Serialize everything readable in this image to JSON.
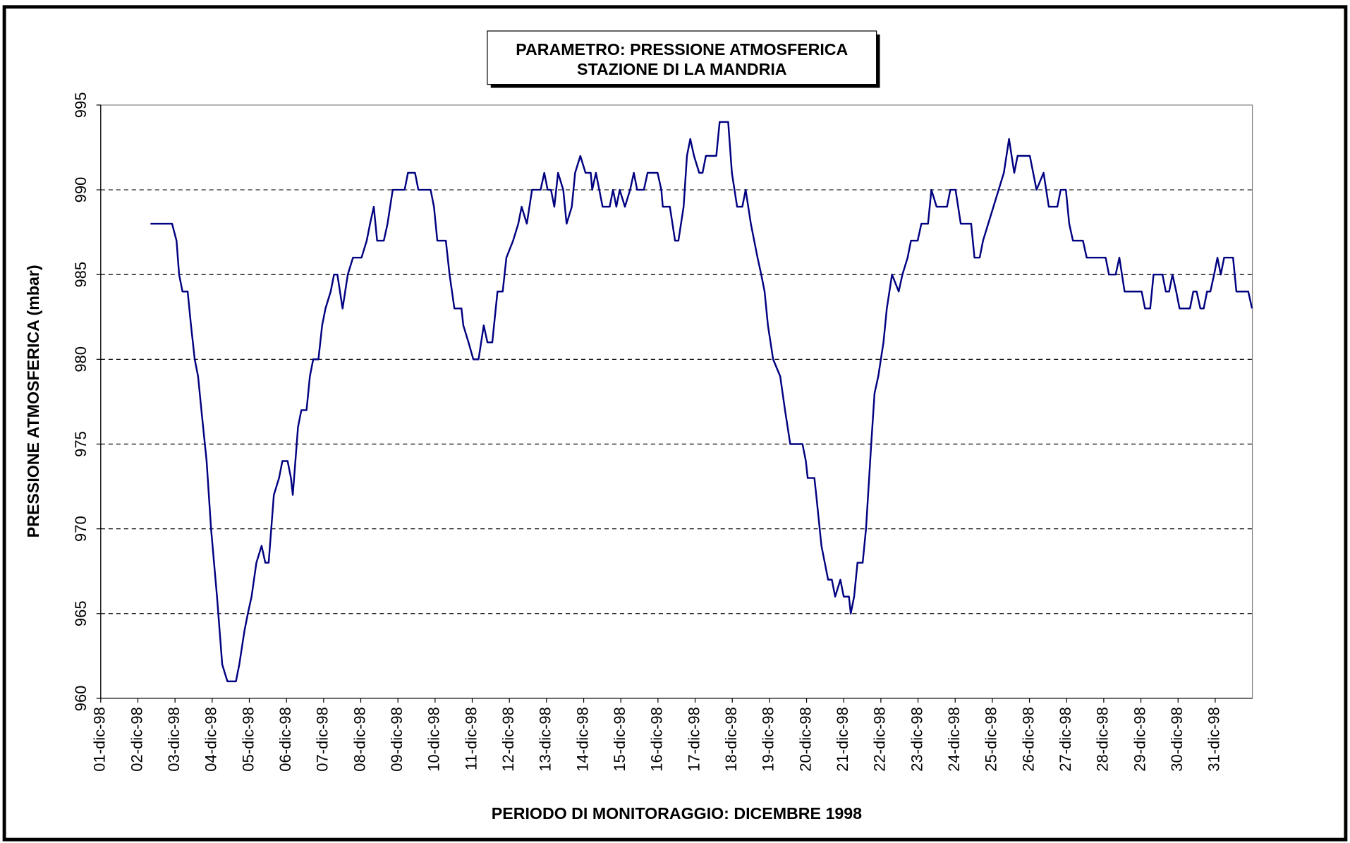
{
  "chart_data": {
    "type": "line",
    "title": [
      "PARAMETRO: PRESSIONE ATMOSFERICA",
      "STAZIONE DI LA MANDRIA"
    ],
    "x_label": "PERIODO DI MONITORAGGIO: DICEMBRE 1998",
    "y_label": "PRESSIONE ATMOSFERICA (mbar)",
    "xlim": [
      1,
      32
    ],
    "xticks": [
      {
        "value": 1,
        "label": "01-dic-98"
      },
      {
        "value": 2,
        "label": "02-dic-98"
      },
      {
        "value": 3,
        "label": "03-dic-98"
      },
      {
        "value": 4,
        "label": "04-dic-98"
      },
      {
        "value": 5,
        "label": "05-dic-98"
      },
      {
        "value": 6,
        "label": "06-dic-98"
      },
      {
        "value": 7,
        "label": "07-dic-98"
      },
      {
        "value": 8,
        "label": "08-dic-98"
      },
      {
        "value": 9,
        "label": "09-dic-98"
      },
      {
        "value": 10,
        "label": "10-dic-98"
      },
      {
        "value": 11,
        "label": "11-dic-98"
      },
      {
        "value": 12,
        "label": "12-dic-98"
      },
      {
        "value": 13,
        "label": "13-dic-98"
      },
      {
        "value": 14,
        "label": "14-dic-98"
      },
      {
        "value": 15,
        "label": "15-dic-98"
      },
      {
        "value": 16,
        "label": "16-dic-98"
      },
      {
        "value": 17,
        "label": "17-dic-98"
      },
      {
        "value": 18,
        "label": "18-dic-98"
      },
      {
        "value": 19,
        "label": "19-dic-98"
      },
      {
        "value": 20,
        "label": "20-dic-98"
      },
      {
        "value": 21,
        "label": "21-dic-98"
      },
      {
        "value": 22,
        "label": "22-dic-98"
      },
      {
        "value": 23,
        "label": "23-dic-98"
      },
      {
        "value": 24,
        "label": "24-dic-98"
      },
      {
        "value": 25,
        "label": "25-dic-98"
      },
      {
        "value": 26,
        "label": "26-dic-98"
      },
      {
        "value": 27,
        "label": "27-dic-98"
      },
      {
        "value": 28,
        "label": "28-dic-98"
      },
      {
        "value": 29,
        "label": "29-dic-98"
      },
      {
        "value": 30,
        "label": "30-dic-98"
      },
      {
        "value": 31,
        "label": "31-dic-98"
      }
    ],
    "ylim": [
      960,
      995
    ],
    "yticks": [
      960,
      965,
      970,
      975,
      980,
      985,
      990,
      995
    ],
    "grid": true,
    "color": "#000080",
    "x": [
      2.34,
      2.92,
      3.04,
      3.11,
      3.2,
      3.34,
      3.43,
      3.53,
      3.62,
      3.71,
      3.85,
      3.97,
      4.13,
      4.27,
      4.41,
      4.64,
      4.73,
      4.87,
      4.96,
      5.06,
      5.19,
      5.33,
      5.43,
      5.52,
      5.66,
      5.8,
      5.89,
      6.03,
      6.12,
      6.17,
      6.31,
      6.4,
      6.54,
      6.63,
      6.72,
      6.86,
      6.96,
      7.05,
      7.19,
      7.28,
      7.37,
      7.51,
      7.65,
      7.79,
      8.02,
      8.16,
      8.25,
      8.35,
      8.44,
      8.62,
      8.72,
      8.86,
      9.18,
      9.27,
      9.46,
      9.55,
      9.88,
      9.97,
      10.06,
      10.29,
      10.39,
      10.52,
      10.71,
      10.76,
      10.9,
      11.03,
      11.17,
      11.31,
      11.41,
      11.54,
      11.68,
      11.82,
      11.92,
      12.1,
      12.24,
      12.33,
      12.47,
      12.61,
      12.84,
      12.94,
      13.03,
      13.12,
      13.21,
      13.31,
      13.45,
      13.54,
      13.68,
      13.77,
      13.91,
      14.05,
      14.19,
      14.23,
      14.33,
      14.42,
      14.51,
      14.7,
      14.79,
      14.88,
      14.97,
      15.11,
      15.25,
      15.35,
      15.44,
      15.62,
      15.72,
      15.99,
      16.09,
      16.13,
      16.32,
      16.46,
      16.55,
      16.69,
      16.78,
      16.87,
      16.97,
      17.11,
      17.2,
      17.29,
      17.57,
      17.66,
      17.89,
      17.99,
      18.13,
      18.27,
      18.36,
      18.5,
      18.59,
      18.68,
      18.78,
      18.87,
      18.96,
      19.1,
      19.29,
      19.42,
      19.56,
      19.89,
      19.98,
      20.03,
      20.21,
      20.26,
      20.4,
      20.49,
      20.58,
      20.68,
      20.77,
      20.91,
      21.0,
      21.14,
      21.19,
      21.28,
      21.37,
      21.51,
      21.6,
      21.74,
      21.83,
      21.93,
      22.07,
      22.16,
      22.3,
      22.48,
      22.58,
      22.72,
      22.81,
      22.99,
      23.09,
      23.27,
      23.36,
      23.5,
      23.78,
      23.87,
      24.01,
      24.15,
      24.43,
      24.52,
      24.66,
      24.75,
      24.89,
      25.03,
      25.17,
      25.31,
      25.45,
      25.59,
      25.68,
      26.01,
      26.1,
      26.19,
      26.38,
      26.52,
      26.75,
      26.84,
      26.98,
      27.07,
      27.17,
      27.44,
      27.54,
      28.05,
      28.14,
      28.32,
      28.42,
      28.56,
      29.02,
      29.11,
      29.25,
      29.34,
      29.58,
      29.67,
      29.76,
      29.85,
      29.95,
      30.04,
      30.32,
      30.41,
      30.5,
      30.6,
      30.69,
      30.78,
      30.87,
      30.97,
      31.06,
      31.15,
      31.24,
      31.48,
      31.57,
      31.89,
      31.99
    ],
    "values": [
      988,
      988,
      987,
      985,
      984,
      984,
      982,
      980,
      979,
      977,
      974,
      970,
      966,
      962,
      961,
      961,
      962,
      964,
      965,
      966,
      968,
      969,
      968,
      968,
      972,
      973,
      974,
      974,
      973,
      972,
      976,
      977,
      977,
      979,
      980,
      980,
      982,
      983,
      984,
      985,
      985,
      983,
      985,
      986,
      986,
      987,
      988,
      989,
      987,
      987,
      988,
      990,
      990,
      991,
      991,
      990,
      990,
      989,
      987,
      987,
      985,
      983,
      983,
      982,
      981,
      980,
      980,
      982,
      981,
      981,
      984,
      984,
      986,
      987,
      988,
      989,
      988,
      990,
      990,
      991,
      990,
      990,
      989,
      991,
      990,
      988,
      989,
      991,
      992,
      991,
      991,
      990,
      991,
      990,
      989,
      989,
      990,
      989,
      990,
      989,
      990,
      991,
      990,
      990,
      991,
      991,
      990,
      989,
      989,
      987,
      987,
      989,
      992,
      993,
      992,
      991,
      991,
      992,
      992,
      994,
      994,
      991,
      989,
      989,
      990,
      988,
      987,
      986,
      985,
      984,
      982,
      980,
      979,
      977,
      975,
      975,
      974,
      973,
      973,
      972,
      969,
      968,
      967,
      967,
      966,
      967,
      966,
      966,
      965,
      966,
      968,
      968,
      970,
      975,
      978,
      979,
      981,
      983,
      985,
      984,
      985,
      986,
      987,
      987,
      988,
      988,
      990,
      989,
      989,
      990,
      990,
      988,
      988,
      986,
      986,
      987,
      988,
      989,
      990,
      991,
      993,
      991,
      992,
      992,
      991,
      990,
      991,
      989,
      989,
      990,
      990,
      988,
      987,
      987,
      986,
      986,
      985,
      985,
      986,
      984,
      984,
      983,
      983,
      985,
      985,
      984,
      984,
      985,
      984,
      983,
      983,
      984,
      984,
      983,
      983,
      984,
      984,
      985,
      986,
      985,
      986,
      986,
      984,
      984,
      983
    ]
  }
}
